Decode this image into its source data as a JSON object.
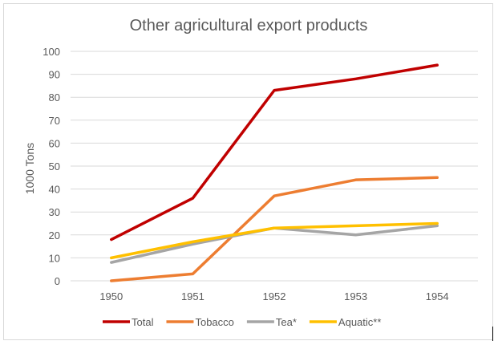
{
  "chart_data": {
    "type": "line",
    "title": "Other agricultural export products",
    "ylabel": "1000 Tons",
    "xlabel": "",
    "categories": [
      "1950",
      "1951",
      "1952",
      "1953",
      "1954"
    ],
    "ylim": [
      0,
      100
    ],
    "yticks": [
      "0",
      "10",
      "20",
      "30",
      "40",
      "50",
      "60",
      "70",
      "80",
      "90",
      "100"
    ],
    "grid": true,
    "legend": "bottom",
    "series": [
      {
        "name": "Total",
        "color": "#c00000",
        "values": [
          18,
          36,
          83,
          88,
          94
        ]
      },
      {
        "name": "Tobacco",
        "color": "#ed7d31",
        "values": [
          0,
          3,
          37,
          44,
          45
        ]
      },
      {
        "name": "Tea*",
        "color": "#a5a5a5",
        "values": [
          8,
          16,
          23,
          20,
          24
        ]
      },
      {
        "name": "Aquatic**",
        "color": "#ffc000",
        "values": [
          10,
          17,
          23,
          24,
          25
        ]
      }
    ]
  }
}
